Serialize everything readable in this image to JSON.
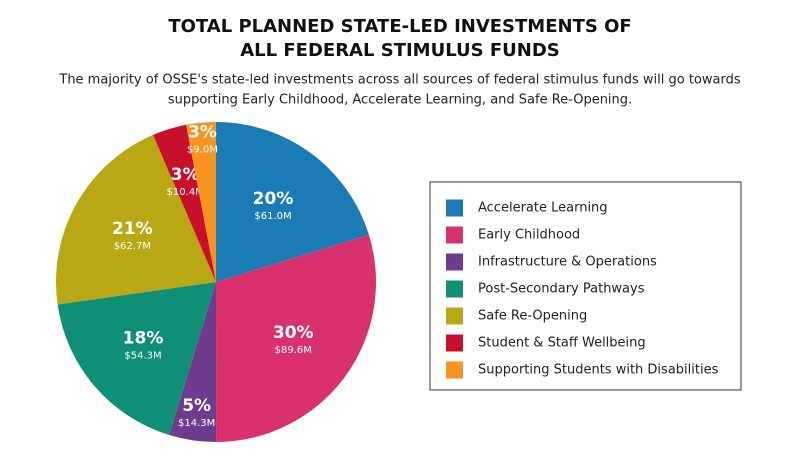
{
  "chart_data": {
    "type": "pie",
    "title": [
      "TOTAL PLANNED STATE-LED INVESTMENTS OF",
      "ALL FEDERAL STIMULUS FUNDS"
    ],
    "subtitle": [
      "The majority of OSSE's state-led investments across all sources of federal stimulus funds will go towards",
      "supporting Early Childhood, Accelerate Learning, and Safe Re-Opening."
    ],
    "categories": [
      "Accelerate Learning",
      "Early Childhood",
      "Infrastructure & Operations",
      "Post-Secondary Pathways",
      "Safe Re-Opening",
      "Student & Staff Wellbeing",
      "Supporting Students with Disabilities"
    ],
    "values": [
      61.0,
      89.6,
      14.3,
      54.3,
      62.7,
      10.4,
      9.0
    ],
    "value_labels": [
      "$61.0M",
      "$89.6M",
      "$14.3M",
      "$54.3M",
      "$62.7M",
      "$10.4M",
      "$9.0M"
    ],
    "percent_labels": [
      "20%",
      "30%",
      "5%",
      "18%",
      "21%",
      "3%",
      "3%"
    ],
    "colors": [
      "#1b7bb5",
      "#d9306e",
      "#6f3b8e",
      "#0f8f76",
      "#b9a813",
      "#c8102e",
      "#f7931e"
    ]
  }
}
